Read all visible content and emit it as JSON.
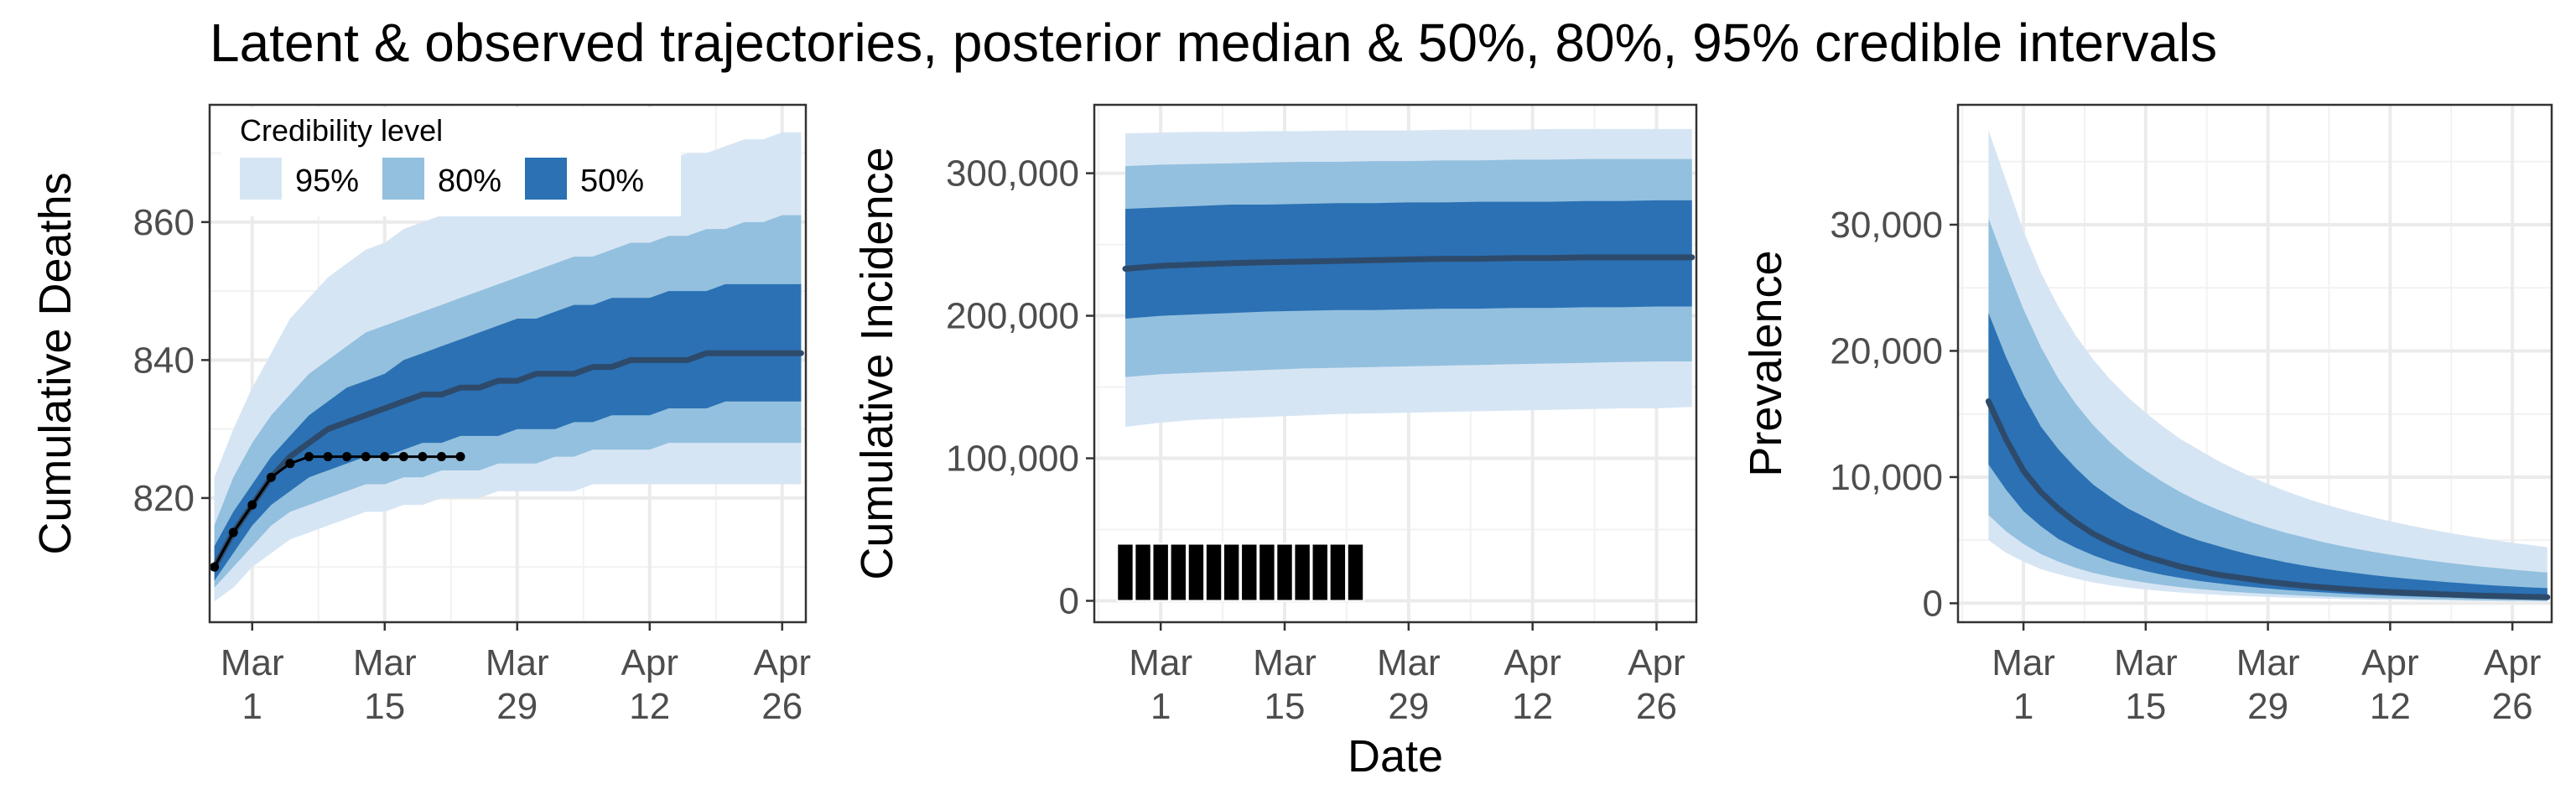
{
  "title": "Latent & observed trajectories, posterior median & 50%, 80%, 95% credible intervals",
  "xlabel": "Date",
  "colors": {
    "band95": "#d6e5f4",
    "band80": "#93c0de",
    "band50": "#2b71b4",
    "median": "#2e4a6b",
    "observed": "#000000",
    "grid": "#ebebeb",
    "panel_border": "#333333"
  },
  "legend": {
    "title": "Credibility level",
    "placement": "top-left inside first panel",
    "items": [
      {
        "label": "95%",
        "band": "band95"
      },
      {
        "label": "80%",
        "band": "band80"
      },
      {
        "label": "50%",
        "band": "band50"
      }
    ]
  },
  "chart_data": [
    {
      "type": "area",
      "ylabel": "Cumulative Deaths",
      "x_ticks": [
        {
          "date": "Mar 1",
          "line1": "Mar",
          "line2": "1",
          "day": 0
        },
        {
          "date": "Mar 15",
          "line1": "Mar",
          "line2": "15",
          "day": 14
        },
        {
          "date": "Mar 29",
          "line1": "Mar",
          "line2": "29",
          "day": 28
        },
        {
          "date": "Apr 12",
          "line1": "Apr",
          "line2": "12",
          "day": 42
        },
        {
          "date": "Apr 26",
          "line1": "Apr",
          "line2": "26",
          "day": 56
        }
      ],
      "y_ticks": [
        {
          "value": 820,
          "label": "820"
        },
        {
          "value": 840,
          "label": "840"
        },
        {
          "value": 860,
          "label": "860"
        }
      ],
      "xlim": [
        -4.5,
        58.5
      ],
      "ylim": [
        802,
        877
      ],
      "x": [
        -4,
        -2,
        0,
        2,
        4,
        6,
        8,
        10,
        12,
        14,
        16,
        18,
        20,
        22,
        24,
        26,
        28,
        30,
        32,
        34,
        36,
        38,
        40,
        42,
        44,
        46,
        48,
        50,
        52,
        54,
        56,
        58
      ],
      "median": [
        810,
        815,
        819,
        823,
        826,
        828,
        830,
        831,
        832,
        833,
        834,
        835,
        835,
        836,
        836,
        837,
        837,
        838,
        838,
        838,
        839,
        839,
        840,
        840,
        840,
        840,
        841,
        841,
        841,
        841,
        841,
        841
      ],
      "lo50": [
        808,
        812,
        816,
        819,
        821,
        823,
        824,
        825,
        826,
        826,
        827,
        828,
        828,
        829,
        829,
        829,
        830,
        830,
        830,
        831,
        831,
        832,
        832,
        832,
        833,
        833,
        833,
        834,
        834,
        834,
        834,
        834
      ],
      "hi50": [
        813,
        818,
        822,
        826,
        829,
        832,
        834,
        836,
        837,
        838,
        840,
        841,
        842,
        843,
        844,
        845,
        846,
        846,
        847,
        848,
        848,
        849,
        849,
        849,
        850,
        850,
        850,
        851,
        851,
        851,
        851,
        851
      ],
      "lo80": [
        807,
        810,
        813,
        816,
        818,
        819,
        820,
        821,
        822,
        822,
        823,
        823,
        824,
        824,
        824,
        825,
        825,
        825,
        826,
        826,
        827,
        827,
        827,
        827,
        828,
        828,
        828,
        828,
        828,
        828,
        828,
        828
      ],
      "hi80": [
        816,
        823,
        828,
        832,
        835,
        838,
        840,
        842,
        844,
        845,
        846,
        847,
        848,
        849,
        850,
        851,
        852,
        853,
        854,
        855,
        855,
        856,
        857,
        857,
        858,
        858,
        859,
        859,
        860,
        860,
        861,
        861
      ],
      "lo95": [
        805,
        807,
        810,
        812,
        814,
        815,
        816,
        817,
        818,
        818,
        819,
        819,
        820,
        820,
        820,
        821,
        821,
        821,
        821,
        821,
        822,
        822,
        822,
        822,
        822,
        822,
        822,
        822,
        822,
        822,
        822,
        822
      ],
      "hi95": [
        823,
        830,
        836,
        841,
        846,
        849,
        852,
        854,
        856,
        857,
        859,
        860,
        861,
        862,
        863,
        864,
        865,
        865,
        866,
        867,
        867,
        868,
        868,
        869,
        869,
        870,
        870,
        871,
        872,
        872,
        873,
        873
      ],
      "observed": {
        "x": [
          -4,
          -2,
          0,
          2,
          4,
          6,
          8,
          10,
          12,
          14,
          16,
          18,
          20,
          22
        ],
        "y": [
          810,
          815,
          819,
          823,
          825,
          826,
          826,
          826,
          826,
          826,
          826,
          826,
          826,
          826
        ]
      }
    },
    {
      "type": "area",
      "ylabel": "Cumulative Incidence",
      "x_ticks": [
        {
          "date": "Mar 1",
          "line1": "Mar",
          "line2": "1",
          "day": 0
        },
        {
          "date": "Mar 15",
          "line1": "Mar",
          "line2": "15",
          "day": 14
        },
        {
          "date": "Mar 29",
          "line1": "Mar",
          "line2": "29",
          "day": 28
        },
        {
          "date": "Apr 12",
          "line1": "Apr",
          "line2": "12",
          "day": 42
        },
        {
          "date": "Apr 26",
          "line1": "Apr",
          "line2": "26",
          "day": 56
        }
      ],
      "y_ticks": [
        {
          "value": 0,
          "label": "0"
        },
        {
          "value": 100000,
          "label": "100,000"
        },
        {
          "value": 200000,
          "label": "200,000"
        },
        {
          "value": 300000,
          "label": "300,000"
        }
      ],
      "xlim": [
        -7.5,
        60.5
      ],
      "ylim": [
        -15000,
        348000
      ],
      "x": [
        -4,
        0,
        4,
        8,
        12,
        16,
        20,
        24,
        28,
        32,
        36,
        40,
        44,
        48,
        52,
        56,
        60
      ],
      "median": [
        233000,
        235000,
        236000,
        237000,
        237500,
        238000,
        238500,
        239000,
        239500,
        240000,
        240000,
        240500,
        240500,
        241000,
        241000,
        241000,
        241000
      ],
      "lo50": [
        198000,
        200000,
        201000,
        202000,
        203000,
        203500,
        204000,
        204000,
        204500,
        205000,
        205000,
        205500,
        205500,
        206000,
        206000,
        206500,
        206500
      ],
      "hi50": [
        275000,
        276000,
        277000,
        278000,
        278000,
        278500,
        279000,
        279000,
        279500,
        279500,
        280000,
        280000,
        280000,
        280500,
        280500,
        281000,
        281000
      ],
      "lo80": [
        157000,
        159000,
        160000,
        161000,
        162000,
        163000,
        163500,
        164000,
        164500,
        165000,
        165500,
        166000,
        166500,
        167000,
        167500,
        168000,
        168000
      ],
      "hi80": [
        305000,
        306000,
        306500,
        307000,
        307500,
        308000,
        308000,
        308500,
        308500,
        309000,
        309000,
        309500,
        309500,
        310000,
        310000,
        310000,
        310000
      ],
      "lo95": [
        122000,
        125000,
        127000,
        128000,
        129000,
        130000,
        131000,
        131500,
        132000,
        132500,
        133000,
        133500,
        134000,
        134500,
        135000,
        135000,
        136000
      ],
      "hi95": [
        328000,
        328500,
        329000,
        329000,
        329500,
        329500,
        330000,
        330000,
        330000,
        330500,
        330500,
        330500,
        331000,
        331000,
        331000,
        331000,
        331000
      ],
      "observed_bars": {
        "x": [
          -4,
          -2,
          0,
          2,
          4,
          6,
          8,
          10,
          12,
          14,
          16,
          18,
          20,
          22
        ],
        "y": [
          40000,
          40000,
          40000,
          40000,
          40000,
          40000,
          40000,
          40000,
          40000,
          40000,
          40000,
          40000,
          40000,
          40000
        ]
      }
    },
    {
      "type": "area",
      "ylabel": "Prevalence",
      "x_ticks": [
        {
          "date": "Mar 1",
          "line1": "Mar",
          "line2": "1",
          "day": 0
        },
        {
          "date": "Mar 15",
          "line1": "Mar",
          "line2": "15",
          "day": 14
        },
        {
          "date": "Mar 29",
          "line1": "Mar",
          "line2": "29",
          "day": 28
        },
        {
          "date": "Apr 12",
          "line1": "Apr",
          "line2": "12",
          "day": 42
        },
        {
          "date": "Apr 26",
          "line1": "Apr",
          "line2": "26",
          "day": 56
        }
      ],
      "y_ticks": [
        {
          "value": 0,
          "label": "0"
        },
        {
          "value": 10000,
          "label": "10,000"
        },
        {
          "value": 20000,
          "label": "20,000"
        },
        {
          "value": 30000,
          "label": "30,000"
        }
      ],
      "xlim": [
        -7.5,
        60.5
      ],
      "ylim": [
        -1500,
        39500
      ],
      "x": [
        -4,
        -2,
        0,
        2,
        4,
        6,
        8,
        10,
        12,
        14,
        16,
        18,
        20,
        22,
        24,
        26,
        28,
        30,
        32,
        34,
        36,
        38,
        40,
        42,
        44,
        46,
        48,
        50,
        52,
        54,
        56,
        58,
        60
      ],
      "median": [
        16000,
        13000,
        10500,
        8800,
        7500,
        6400,
        5500,
        4800,
        4200,
        3700,
        3300,
        2900,
        2600,
        2300,
        2100,
        1900,
        1700,
        1550,
        1400,
        1280,
        1170,
        1070,
        980,
        900,
        830,
        770,
        710,
        660,
        610,
        570,
        540,
        510,
        480
      ],
      "lo50": [
        11000,
        9000,
        7300,
        6100,
        5100,
        4400,
        3800,
        3300,
        2900,
        2550,
        2250,
        2000,
        1780,
        1600,
        1440,
        1300,
        1170,
        1060,
        960,
        870,
        790,
        720,
        660,
        600,
        550,
        510,
        470,
        430,
        400,
        370,
        340,
        320,
        300
      ],
      "hi50": [
        23000,
        19500,
        16500,
        14000,
        12200,
        10700,
        9400,
        8400,
        7500,
        6800,
        6100,
        5500,
        5000,
        4600,
        4200,
        3850,
        3550,
        3250,
        3000,
        2780,
        2580,
        2400,
        2230,
        2080,
        1950,
        1820,
        1700,
        1600,
        1500,
        1410,
        1330,
        1260,
        1200
      ],
      "lo80": [
        7000,
        5700,
        4700,
        3900,
        3300,
        2800,
        2400,
        2100,
        1850,
        1630,
        1440,
        1280,
        1140,
        1020,
        910,
        820,
        740,
        670,
        610,
        550,
        500,
        460,
        420,
        380,
        350,
        320,
        300,
        270,
        250,
        230,
        210,
        200,
        190
      ],
      "hi80": [
        30500,
        26800,
        23300,
        20300,
        17800,
        15800,
        14100,
        12700,
        11500,
        10500,
        9600,
        8800,
        8100,
        7500,
        6950,
        6450,
        6000,
        5600,
        5250,
        4900,
        4600,
        4330,
        4080,
        3850,
        3640,
        3440,
        3260,
        3090,
        2940,
        2800,
        2670,
        2550,
        2440
      ],
      "lo95": [
        5000,
        4000,
        3300,
        2700,
        2300,
        1950,
        1650,
        1420,
        1240,
        1090,
        960,
        850,
        760,
        680,
        610,
        550,
        500,
        450,
        410,
        370,
        340,
        310,
        280,
        260,
        240,
        220,
        200,
        190,
        170,
        160,
        150,
        140,
        130
      ],
      "hi95": [
        37500,
        33500,
        29500,
        26200,
        23500,
        21200,
        19300,
        17700,
        16300,
        15100,
        14000,
        13000,
        12200,
        11400,
        10700,
        10050,
        9450,
        8900,
        8400,
        7950,
        7550,
        7170,
        6820,
        6500,
        6200,
        5930,
        5670,
        5430,
        5210,
        5000,
        4800,
        4620,
        4450
      ]
    }
  ]
}
